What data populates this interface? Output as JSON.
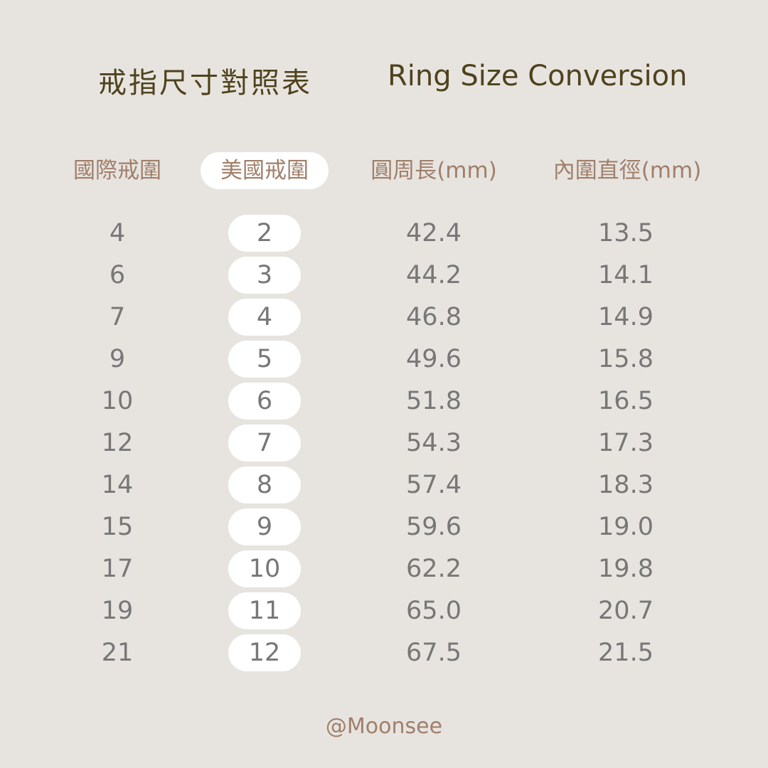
{
  "title_zh": "戒指尺寸對照表",
  "title_en": "Ring Size Conversion",
  "headers": [
    "國際戒圍",
    "美國戒圍",
    "圓周長(mm)",
    "內圍直徑(mm)"
  ],
  "rows": [
    [
      "4",
      "2",
      "42.4",
      "13.5"
    ],
    [
      "6",
      "3",
      "44.2",
      "14.1"
    ],
    [
      "7",
      "4",
      "46.8",
      "14.9"
    ],
    [
      "9",
      "5",
      "49.6",
      "15.8"
    ],
    [
      "10",
      "6",
      "51.8",
      "16.5"
    ],
    [
      "12",
      "7",
      "54.3",
      "17.3"
    ],
    [
      "14",
      "8",
      "57.4",
      "18.3"
    ],
    [
      "15",
      "9",
      "59.6",
      "19.0"
    ],
    [
      "17",
      "10",
      "62.2",
      "19.8"
    ],
    [
      "19",
      "11",
      "65.0",
      "20.7"
    ],
    [
      "21",
      "12",
      "67.5",
      "21.5"
    ]
  ],
  "footer": "@Moonsee",
  "colors": {
    "background": "#e7e4e0",
    "title": "#4f421c",
    "header": "#a07f6a",
    "value": "#777777",
    "highlight": "#ffffff"
  }
}
